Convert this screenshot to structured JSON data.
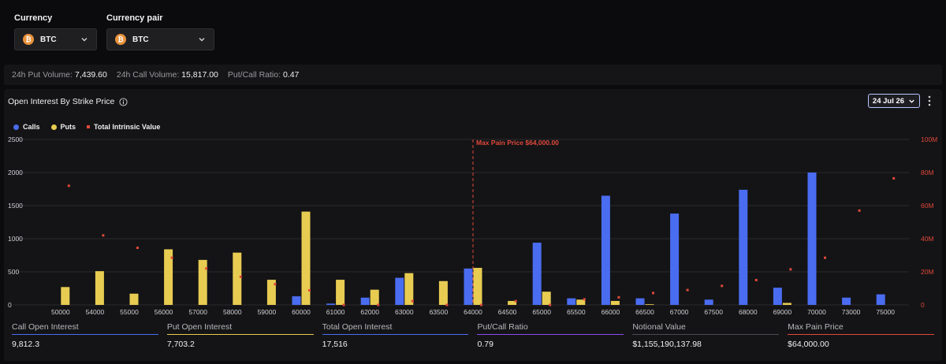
{
  "currency": {
    "label": "Currency",
    "value": "BTC",
    "coin_glyph": "₿"
  },
  "pair": {
    "label": "Currency pair",
    "value": "BTC",
    "coin_glyph": "₿"
  },
  "stats": [
    {
      "label": "24h Put Volume:",
      "value": "7,439.60"
    },
    {
      "label": "24h Call Volume:",
      "value": "15,817.00"
    },
    {
      "label": "Put/Call Ratio:",
      "value": "0.47"
    }
  ],
  "panel": {
    "title": "Open Interest By Strike Price",
    "date": "24 Jul 26"
  },
  "legend": {
    "calls": "Calls",
    "puts": "Puts",
    "intrinsic": "Total Intrinsic Value"
  },
  "colors": {
    "calls": "#4a6cf0",
    "puts": "#e8cc52",
    "intrinsic": "#e0483a",
    "max_pain": "#e0483a",
    "grid": "#2a2a2e",
    "axis_text": "#cfcfd4",
    "right_axis_text": "#e0483a"
  },
  "chart_data": {
    "type": "bar",
    "categories": [
      "50000",
      "54000",
      "55000",
      "56000",
      "57000",
      "58000",
      "59000",
      "60000",
      "61000",
      "62000",
      "63000",
      "63500",
      "64000",
      "64500",
      "65000",
      "65500",
      "66000",
      "66500",
      "67000",
      "67500",
      "68000",
      "69000",
      "70000",
      "73000",
      "75000"
    ],
    "series": [
      {
        "name": "Calls",
        "axis": "left",
        "values": [
          0,
          0,
          0,
          0,
          0,
          0,
          0,
          130,
          20,
          110,
          410,
          0,
          550,
          0,
          940,
          100,
          1650,
          100,
          1380,
          80,
          1740,
          260,
          2000,
          110,
          160
        ]
      },
      {
        "name": "Puts",
        "axis": "left",
        "values": [
          270,
          510,
          170,
          840,
          680,
          790,
          380,
          1410,
          380,
          230,
          480,
          360,
          560,
          60,
          200,
          80,
          60,
          10,
          0,
          0,
          0,
          30,
          0,
          0,
          0
        ]
      },
      {
        "name": "Total Intrinsic Value",
        "axis": "right",
        "type": "scatter",
        "values": [
          72000000,
          42000000,
          34500000,
          28500000,
          22000000,
          17000000,
          12500000,
          8800000,
          0,
          0,
          2300000,
          0,
          0,
          2300000,
          0,
          3400000,
          4600000,
          7200000,
          9000000,
          11500000,
          15000000,
          21500000,
          28500000,
          57000000,
          76500000
        ]
      }
    ],
    "ylim": [
      0,
      2500
    ],
    "yticks": [
      0,
      500,
      1000,
      1500,
      2000,
      2500
    ],
    "y2lim": [
      0,
      100000000
    ],
    "y2ticks": [
      "0",
      "20M",
      "40M",
      "60M",
      "80M",
      "100M"
    ],
    "max_pain": {
      "category": "64000",
      "label": "Max Pain Price $64,000.00"
    }
  },
  "metrics": [
    {
      "label": "Call Open Interest",
      "value": "9,812.3",
      "color": "#4a6cf0"
    },
    {
      "label": "Put Open Interest",
      "value": "7,703.2",
      "color": "#e8cc52"
    },
    {
      "label": "Total Open Interest",
      "value": "17,516",
      "color": "#4a6cf0"
    },
    {
      "label": "Put/Call Ratio",
      "value": "0.79",
      "color": "#8a4af0"
    },
    {
      "label": "Notional Value",
      "value": "$1,155,190,137.98",
      "color": "#4a4a52"
    },
    {
      "label": "Max Pain Price",
      "value": "$64,000.00",
      "color": "#e0483a"
    }
  ]
}
